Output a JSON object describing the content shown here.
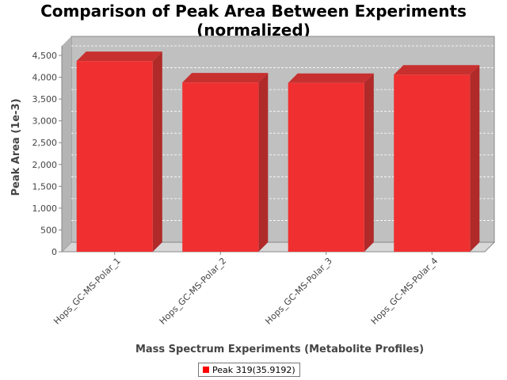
{
  "chart_data": {
    "type": "bar",
    "title": "Comparison of Peak Area Between Experiments",
    "subtitle": "(normalized)",
    "xlabel": "Mass Spectrum Experiments (Metabolite Profiles)",
    "ylabel": "Peak Area (1e-3)",
    "categories": [
      "Hops_GC-MS-Polar_1",
      "Hops_GC-MS-Polar_2",
      "Hops_GC-MS-Polar_3",
      "Hops_GC-MS-Polar_4"
    ],
    "series": [
      {
        "name": "Peak 319(35.9192)",
        "color": "#ff0000",
        "values": [
          4370,
          3880,
          3870,
          4060
        ]
      }
    ],
    "ylim": [
      0,
      4500
    ],
    "yticks": [
      0,
      500,
      1000,
      1500,
      2000,
      2500,
      3000,
      3500,
      4000,
      4500
    ],
    "ytick_labels": [
      "0",
      "500",
      "1,000",
      "1,500",
      "2,000",
      "2,500",
      "3,000",
      "3,500",
      "4,000",
      "4,500"
    ],
    "grid": true,
    "legend_position": "bottom-center",
    "plot_background": "#c0c0c0",
    "bar_color": "#f03030"
  }
}
